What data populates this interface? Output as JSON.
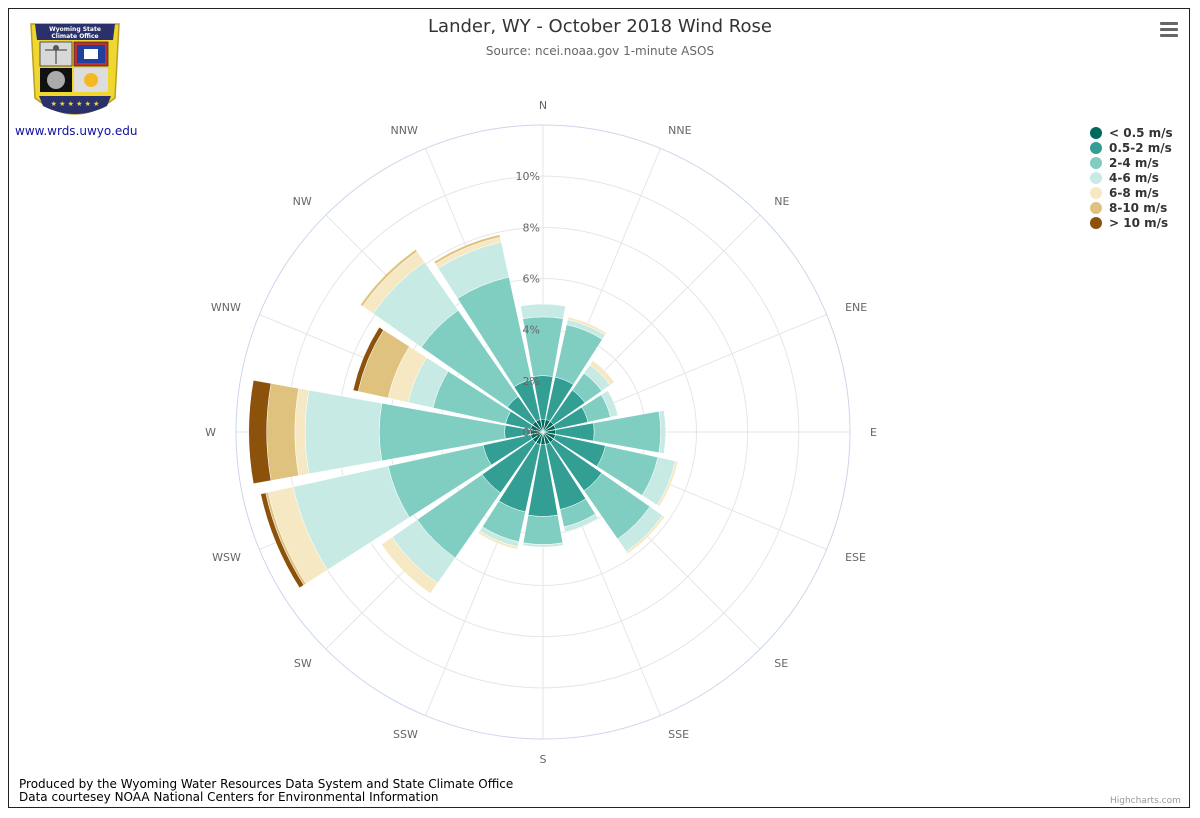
{
  "header": {
    "title": "Lander, WY - October 2018 Wind Rose",
    "subtitle": "Source: ncei.noaa.gov 1-minute ASOS"
  },
  "logo": {
    "org_line1": "Wyoming State",
    "org_line2": "Climate Office",
    "link_text": "www.wrds.uwyo.edu"
  },
  "footer": {
    "line1": "Produced by the Wyoming Water Resources Data System and State Climate Office",
    "line2": "Data courtesey NOAA National Centers for Environmental Information"
  },
  "credits": "Highcharts.com",
  "colors": {
    "axis_circle": "#ccd6eb",
    "grid": "#e6e6e6"
  },
  "chart_data": {
    "type": "wind-rose",
    "title": "Lander, WY - October 2018 Wind Rose",
    "subtitle": "Source: ncei.noaa.gov 1-minute ASOS",
    "categories": [
      "N",
      "NNE",
      "NE",
      "ENE",
      "E",
      "ESE",
      "SE",
      "SSE",
      "S",
      "SSW",
      "SW",
      "WSW",
      "W",
      "WNW",
      "NW",
      "NNW"
    ],
    "y_ticks": [
      "0%",
      "2%",
      "4%",
      "6%",
      "8%",
      "10%"
    ],
    "ylim": [
      0,
      12
    ],
    "stacking": "normal",
    "legend_placement": "top-right",
    "series": [
      {
        "name": "< 0.5 m/s",
        "color": "#00695c",
        "values": [
          0.5,
          0.5,
          0.5,
          0.5,
          0.5,
          0.5,
          0.5,
          0.5,
          0.5,
          0.5,
          0.5,
          0.5,
          0.5,
          0.5,
          0.5,
          0.5
        ]
      },
      {
        "name": "0.5-2 m/s",
        "color": "#339e94",
        "values": [
          1.7,
          1.7,
          1.5,
          1.3,
          1.5,
          2.0,
          2.3,
          2.6,
          2.8,
          2.7,
          2.4,
          1.9,
          1.0,
          1.0,
          1.2,
          1.6
        ]
      },
      {
        "name": "2-4 m/s",
        "color": "#80cdc1",
        "values": [
          2.3,
          2.1,
          0.8,
          0.9,
          2.6,
          2.1,
          2.3,
          0.7,
          1.1,
          1.2,
          3.1,
          3.8,
          4.9,
          2.9,
          4.1,
          4.1
        ]
      },
      {
        "name": "4-6 m/s",
        "color": "#c7eae5",
        "values": [
          0.5,
          0.2,
          0.4,
          0.3,
          0.2,
          0.7,
          0.6,
          0.2,
          0.1,
          0.2,
          1.2,
          3.8,
          2.9,
          1.0,
          2.3,
          1.4
        ]
      },
      {
        "name": "6-8 m/s",
        "color": "#f6e8c3",
        "values": [
          0,
          0.1,
          0.2,
          0,
          0,
          0.1,
          0.1,
          0,
          0,
          0.1,
          0.5,
          1.0,
          0.4,
          0.8,
          0.5,
          0.2
        ]
      },
      {
        "name": "8-10 m/s",
        "color": "#dfc27d",
        "values": [
          0,
          0,
          0,
          0,
          0,
          0,
          0,
          0,
          0,
          0,
          0,
          0.1,
          1.1,
          1.2,
          0.1,
          0.1
        ]
      },
      {
        "name": "> 10 m/s",
        "color": "#8c510a",
        "values": [
          0,
          0,
          0,
          0,
          0,
          0,
          0,
          0,
          0,
          0,
          0,
          0.2,
          0.7,
          0.2,
          0,
          0
        ]
      }
    ]
  }
}
